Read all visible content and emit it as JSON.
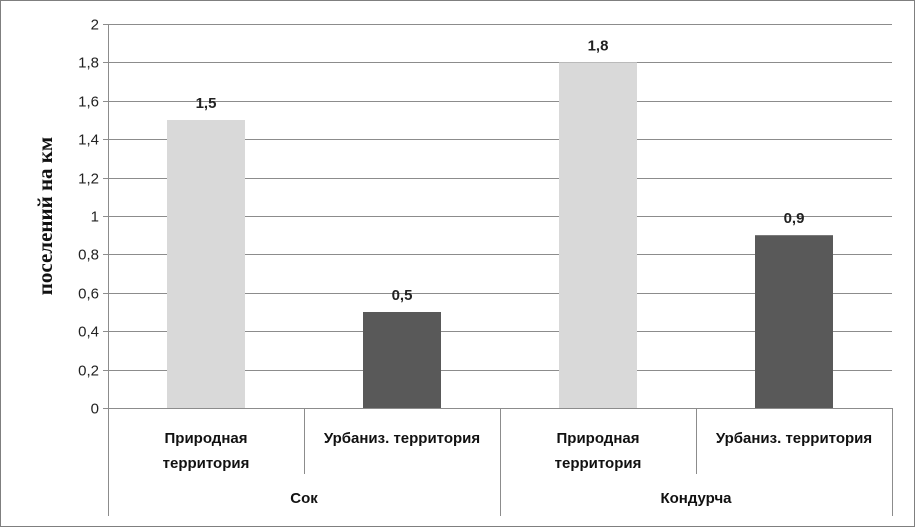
{
  "chart_data": {
    "type": "bar",
    "ylabel": "поселений на км",
    "ylim": [
      0,
      2
    ],
    "yticks": [
      "0",
      "0,2",
      "0,4",
      "0,6",
      "0,8",
      "1",
      "1,2",
      "1,4",
      "1,6",
      "1,8",
      "2"
    ],
    "grid": true,
    "groups": [
      {
        "name": "Сок",
        "categories": [
          {
            "label_lines": [
              "Природная",
              "территория"
            ],
            "value": 1.5,
            "value_label": "1,5",
            "color": "#d9d9d9"
          },
          {
            "label_lines": [
              "Урбаниз. территория"
            ],
            "value": 0.5,
            "value_label": "0,5",
            "color": "#595959"
          }
        ]
      },
      {
        "name": "Кондурча",
        "categories": [
          {
            "label_lines": [
              "Природная",
              "территория"
            ],
            "value": 1.8,
            "value_label": "1,8",
            "color": "#d9d9d9"
          },
          {
            "label_lines": [
              "Урбаниз. территория"
            ],
            "value": 0.9,
            "value_label": "0,9",
            "color": "#595959"
          }
        ]
      }
    ]
  }
}
